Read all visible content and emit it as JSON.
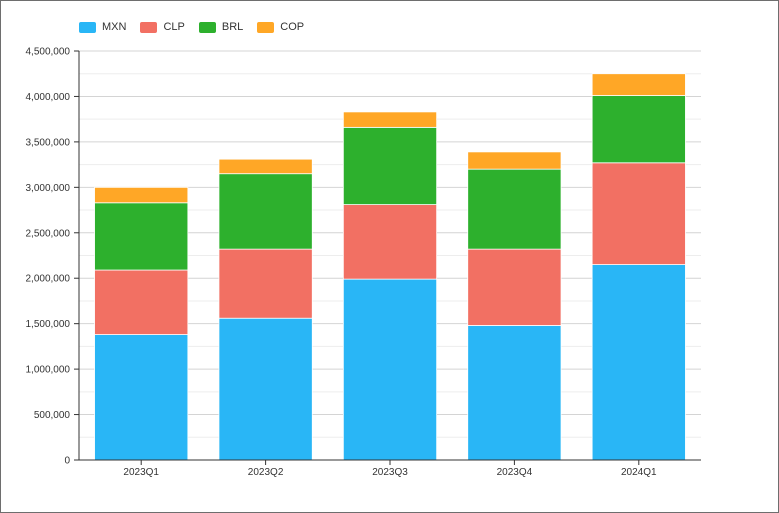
{
  "chart_data": {
    "type": "bar",
    "stacked": true,
    "categories": [
      "2023Q1",
      "2023Q2",
      "2023Q3",
      "2023Q4",
      "2024Q1"
    ],
    "series": [
      {
        "name": "MXN",
        "color": "#29b6f6",
        "values": [
          1380000,
          1560000,
          1990000,
          1480000,
          2150000
        ]
      },
      {
        "name": "CLP",
        "color": "#f27063",
        "values": [
          710000,
          760000,
          820000,
          840000,
          1120000
        ]
      },
      {
        "name": "BRL",
        "color": "#2db02d",
        "values": [
          740000,
          830000,
          850000,
          880000,
          740000
        ]
      },
      {
        "name": "COP",
        "color": "#ffa726",
        "values": [
          170000,
          160000,
          170000,
          190000,
          240000
        ]
      }
    ],
    "ylim": [
      0,
      4500000
    ],
    "yticks": [
      0,
      500000,
      1000000,
      1500000,
      2000000,
      2500000,
      3000000,
      3500000,
      4000000,
      4500000
    ],
    "ytick_labels": [
      "0",
      "500,000",
      "1,000,000",
      "1,500,000",
      "2,000,000",
      "2,500,000",
      "3,000,000",
      "3,500,000",
      "4,000,000",
      "4,500,000"
    ],
    "grid": true,
    "legend_position": "top-left",
    "title": "",
    "xlabel": "",
    "ylabel": ""
  }
}
